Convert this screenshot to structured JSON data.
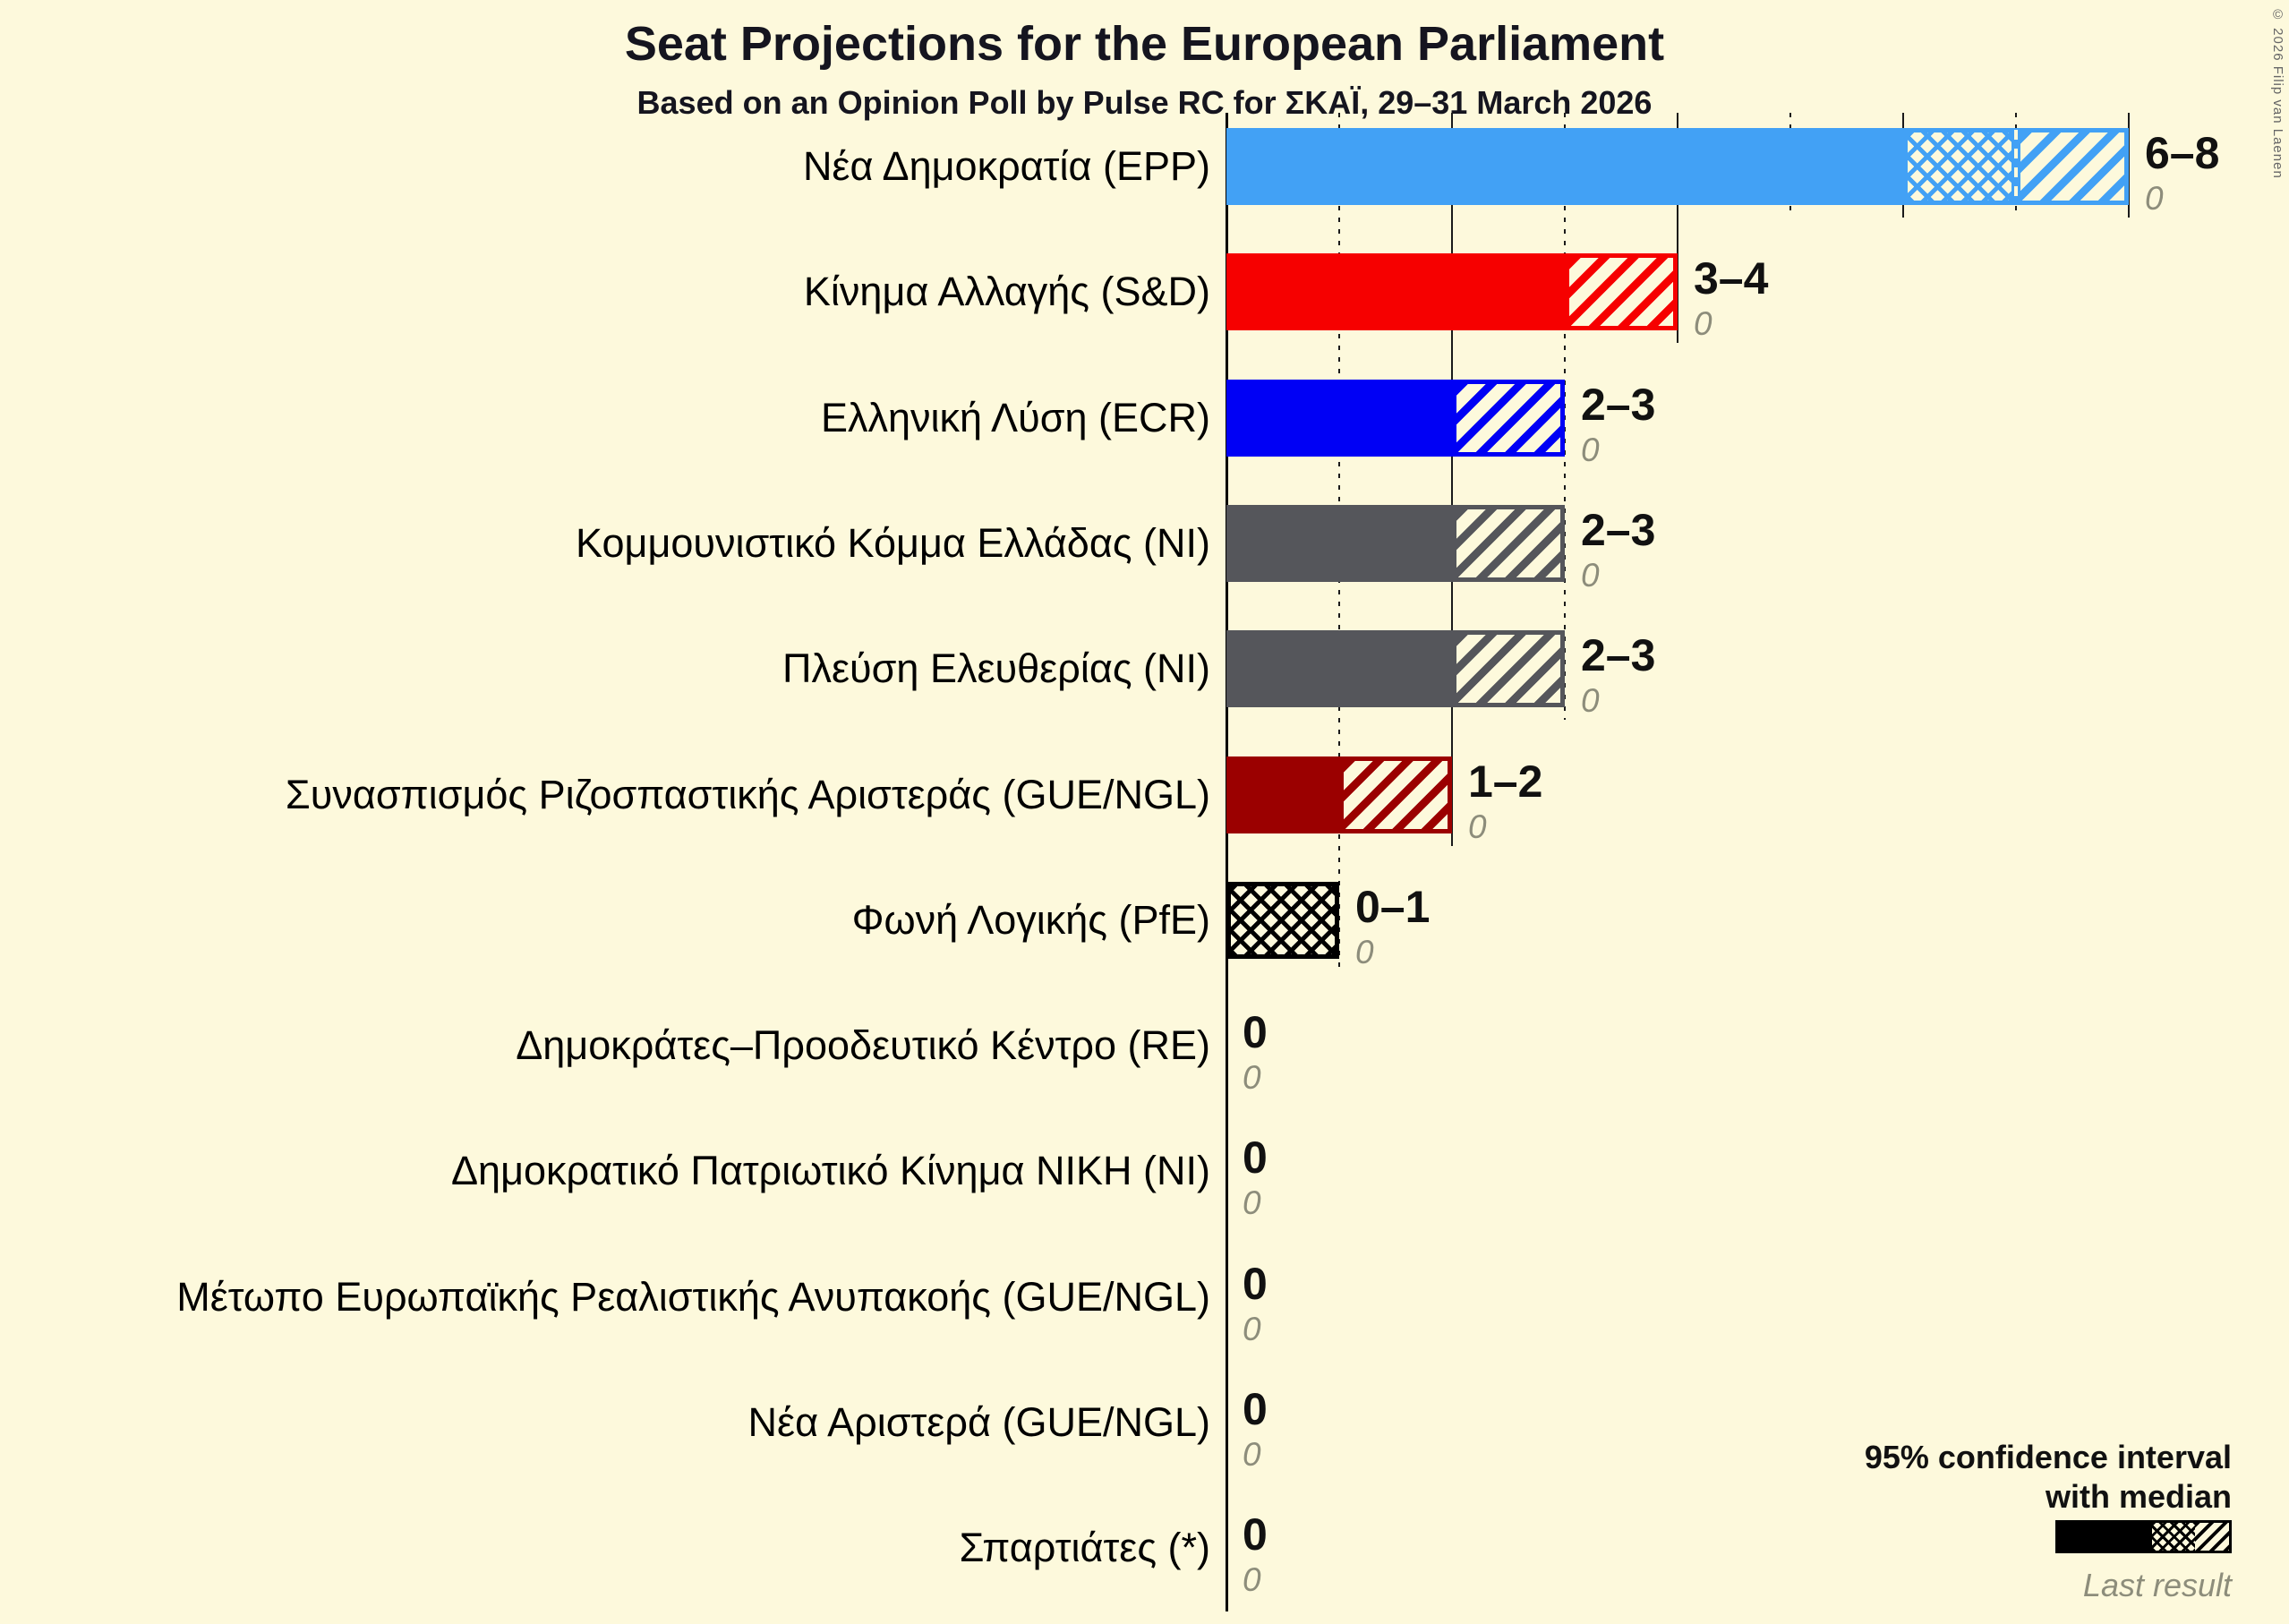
{
  "title": "Seat Projections for the European Parliament",
  "subtitle": "Based on an Opinion Poll by Pulse RC for ΣΚΑΪ, 29–31 March 2026",
  "copyright": "© 2026 Filip van Laenen",
  "legend": {
    "ci_line1": "95% confidence interval",
    "ci_line2": "with median",
    "last_result": "Last result"
  },
  "chart_data": {
    "type": "bar",
    "orientation": "horizontal",
    "x_min": 0,
    "x_max": 8,
    "unit": "seats",
    "grid": "vertical gridlines, dotted at odd seat counts, solid at even; solid axis at 0",
    "bar_encoding": "solid = below lower bound of 95% CI, crosshatch = lower bound to median, diagonal hatch = median to upper bound",
    "parties": [
      {
        "label": "Νέα Δημοκρατία (EPP)",
        "ci_label": "6–8",
        "low": 6,
        "median": 7,
        "high": 8,
        "last_result": 0,
        "color": "#42A1F5"
      },
      {
        "label": "Κίνημα Αλλαγής (S&D)",
        "ci_label": "3–4",
        "low": 3,
        "median": 3,
        "high": 4,
        "last_result": 0,
        "color": "#F60000"
      },
      {
        "label": "Ελληνική Λύση (ECR)",
        "ci_label": "2–3",
        "low": 2,
        "median": 2,
        "high": 3,
        "last_result": 0,
        "color": "#0000F5"
      },
      {
        "label": "Κομμουνιστικό Κόμμα Ελλάδας (NI)",
        "ci_label": "2–3",
        "low": 2,
        "median": 2,
        "high": 3,
        "last_result": 0,
        "color": "#55565B"
      },
      {
        "label": "Πλεύση Ελευθερίας (NI)",
        "ci_label": "2–3",
        "low": 2,
        "median": 2,
        "high": 3,
        "last_result": 0,
        "color": "#55565B"
      },
      {
        "label": "Συνασπισμός Ριζοσπαστικής Αριστεράς (GUE/NGL)",
        "ci_label": "1–2",
        "low": 1,
        "median": 1,
        "high": 2,
        "last_result": 0,
        "color": "#9B0000"
      },
      {
        "label": "Φωνή Λογικής (PfE)",
        "ci_label": "0–1",
        "low": 0,
        "median": 1,
        "high": 1,
        "last_result": 0,
        "color": "#000000"
      },
      {
        "label": "Δημοκράτες–Προοδευτικό Κέντρο (RE)",
        "ci_label": "0",
        "low": 0,
        "median": 0,
        "high": 0,
        "last_result": 0,
        "color": "#000000"
      },
      {
        "label": "Δημοκρατικό Πατριωτικό Κίνημα ΝΙΚΗ (NI)",
        "ci_label": "0",
        "low": 0,
        "median": 0,
        "high": 0,
        "last_result": 0,
        "color": "#000000"
      },
      {
        "label": "Μέτωπο Ευρωπαϊκής Ρεαλιστικής Ανυπακοής (GUE/NGL)",
        "ci_label": "0",
        "low": 0,
        "median": 0,
        "high": 0,
        "last_result": 0,
        "color": "#000000"
      },
      {
        "label": "Νέα Αριστερά (GUE/NGL)",
        "ci_label": "0",
        "low": 0,
        "median": 0,
        "high": 0,
        "last_result": 0,
        "color": "#000000"
      },
      {
        "label": "Σπαρτιάτες (*)",
        "ci_label": "0",
        "low": 0,
        "median": 0,
        "high": 0,
        "last_result": 0,
        "color": "#000000"
      }
    ]
  }
}
